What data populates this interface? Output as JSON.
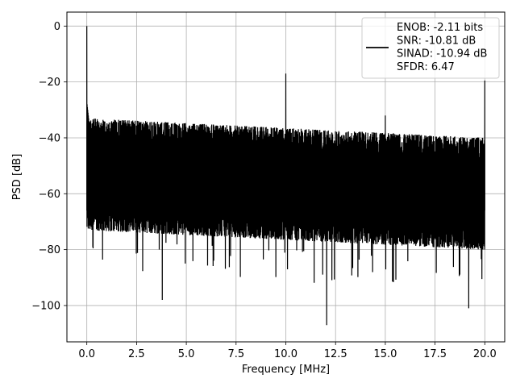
{
  "chart_data": {
    "type": "line",
    "title": "",
    "xlabel": "Frequency [MHz]",
    "ylabel": "PSD [dB]",
    "xlim": [
      -1.0,
      21.0
    ],
    "ylim": [
      -113,
      5
    ],
    "xticks": [
      0.0,
      2.5,
      5.0,
      7.5,
      10.0,
      12.5,
      15.0,
      17.5,
      20.0
    ],
    "xtick_labels": [
      "0.0",
      "2.5",
      "5.0",
      "7.5",
      "10.0",
      "12.5",
      "15.0",
      "17.5",
      "20.0"
    ],
    "yticks": [
      0,
      -20,
      -40,
      -60,
      -80,
      -100
    ],
    "ytick_labels": [
      "0",
      "−20",
      "−40",
      "−60",
      "−80",
      "−100"
    ],
    "grid": true,
    "legend_position": "top-right",
    "line_color": "#000000",
    "legend_lines": [
      "ENOB: -2.11 bits",
      "SNR: -10.81 dB",
      "SINAD: -10.94 dB",
      "SFDR: 6.47"
    ],
    "series": [
      {
        "color": "#000000",
        "noise_floor_upper_db": [
          -33,
          -40
        ],
        "noise_floor_lower_db": [
          -73,
          -80
        ],
        "noise_floor_min_db": -107,
        "peaks": [
          {
            "x": 0.0,
            "y": 0
          },
          {
            "x": 10.0,
            "y": -17
          },
          {
            "x": 15.0,
            "y": -32
          },
          {
            "x": 20.0,
            "y": -19.5
          }
        ],
        "deep_nulls": [
          {
            "x": 3.8,
            "y": -98
          },
          {
            "x": 12.05,
            "y": -107
          },
          {
            "x": 19.2,
            "y": -101
          }
        ]
      }
    ]
  }
}
